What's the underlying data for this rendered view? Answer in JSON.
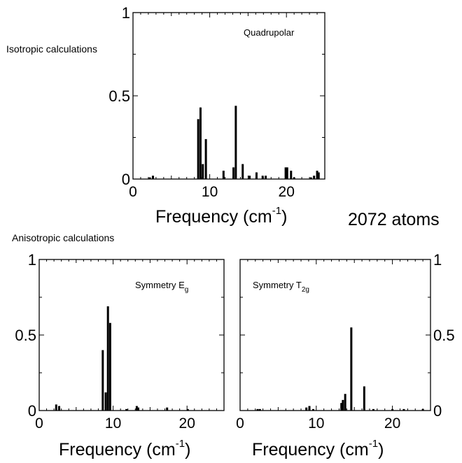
{
  "labels": {
    "isotropic": "Isotropic calculations",
    "anisotropic": "Anisotropic calculations",
    "atoms": "2072 atoms",
    "xlabel_main": "Frequency (cm",
    "xlabel_sup": "-1",
    "xlabel_close": ")"
  },
  "chart_data": [
    {
      "type": "bar",
      "annotation": "Quadrupolar",
      "xlabel": "Frequency (cm-1)",
      "ylabel": "",
      "xlim": [
        0,
        25
      ],
      "ylim": [
        0,
        1
      ],
      "xticks": [
        "0",
        "10",
        "20"
      ],
      "yticks": [
        "0",
        "0.5",
        "1"
      ],
      "x": [
        2.2,
        2.6,
        8.5,
        8.8,
        9.1,
        9.5,
        11.8,
        13.1,
        13.4,
        14.3,
        15.2,
        16.1,
        16.9,
        17.3,
        19.9,
        20.1,
        20.6,
        21.0,
        23.2,
        23.6,
        24.0,
        24.2
      ],
      "values": [
        0.01,
        0.02,
        0.36,
        0.43,
        0.09,
        0.24,
        0.05,
        0.07,
        0.44,
        0.09,
        0.02,
        0.04,
        0.02,
        0.02,
        0.07,
        0.07,
        0.05,
        0.01,
        0.01,
        0.02,
        0.05,
        0.04
      ]
    },
    {
      "type": "bar",
      "annotation_main": "Symmetry E",
      "annotation_sub": "g",
      "xlabel": "Frequency (cm-1)",
      "ylabel": "",
      "xlim": [
        0,
        25
      ],
      "ylim": [
        0,
        1
      ],
      "xticks": [
        "0",
        "10",
        "20"
      ],
      "yticks": [
        "0",
        "0.5",
        "1"
      ],
      "x": [
        2.3,
        2.7,
        8.6,
        9.0,
        9.3,
        9.6,
        11.8,
        13.2,
        13.4,
        17.3,
        20.1
      ],
      "values": [
        0.04,
        0.03,
        0.4,
        0.12,
        0.69,
        0.58,
        0.01,
        0.03,
        0.02,
        0.02,
        0.01
      ]
    },
    {
      "type": "bar",
      "annotation_main": "Symmetry T",
      "annotation_sub": "2g",
      "xlabel": "Frequency (cm-1)",
      "ylabel": "",
      "xlim": [
        0,
        25
      ],
      "ylim": [
        0,
        1
      ],
      "xticks": [
        "0",
        "10",
        "20"
      ],
      "yticks": [
        "0",
        "0.5",
        "1"
      ],
      "x": [
        2.3,
        2.6,
        8.7,
        9.1,
        9.6,
        13.3,
        13.5,
        13.8,
        14.6,
        16.3,
        17.5,
        20.0,
        21.5,
        24.0
      ],
      "values": [
        0.01,
        0.01,
        0.02,
        0.03,
        0.01,
        0.05,
        0.07,
        0.11,
        0.55,
        0.16,
        0.01,
        0.01,
        0.01,
        0.01
      ]
    }
  ]
}
